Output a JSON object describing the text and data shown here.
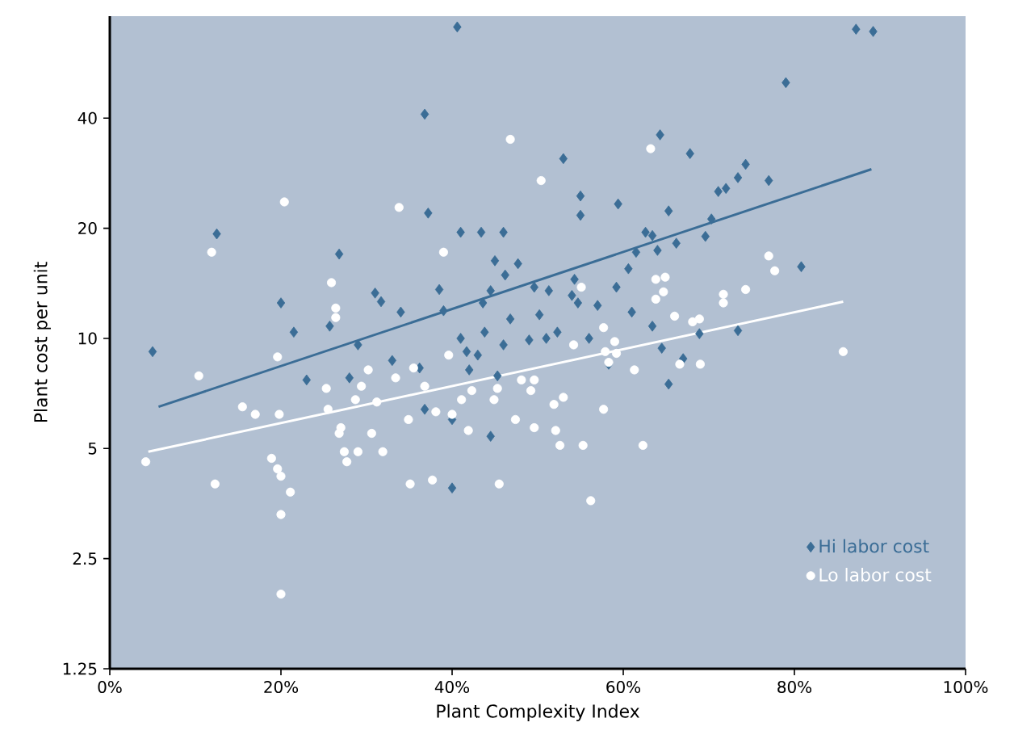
{
  "chart_data": {
    "type": "scatter",
    "xlabel": "Plant Complexity Index",
    "ylabel": "Plant cost per unit",
    "log": "y",
    "legend": "bottom right",
    "grid": false,
    "xlim": [
      0,
      100
    ],
    "ylim": [
      1.25,
      76
    ],
    "xticks": [
      {
        "value": 0,
        "label": "0%"
      },
      {
        "value": 20,
        "label": "20%"
      },
      {
        "value": 40,
        "label": "40%"
      },
      {
        "value": 60,
        "label": "60%"
      },
      {
        "value": 80,
        "label": "80%"
      },
      {
        "value": 100,
        "label": "100%"
      }
    ],
    "yticks": [
      1.25,
      2.5,
      5,
      10,
      20,
      40
    ],
    "series": [
      {
        "name": "Hi labor cost",
        "color": "#3b6d96",
        "marker": "diamond",
        "x": [
          5,
          12.5,
          20,
          21.5,
          23,
          25.7,
          26.8,
          28,
          29,
          31,
          31.7,
          33,
          34,
          36.8,
          36.2,
          36.8,
          37.2,
          38.5,
          39,
          40,
          40,
          40.6,
          41,
          41,
          41.7,
          42,
          43,
          43.4,
          43.8,
          43.6,
          44.5,
          45,
          44.5,
          45.3,
          46,
          46.8,
          46.2,
          47.7,
          46,
          49,
          49.6,
          50.2,
          51.3,
          51,
          52.3,
          53,
          54,
          54.3,
          54.7,
          55,
          55,
          56,
          57,
          58.3,
          59.2,
          59.4,
          60.6,
          61,
          61.5,
          62.6,
          63.4,
          63.4,
          64,
          64.3,
          64.5,
          65.3,
          65.3,
          66.2,
          67,
          67.8,
          68.9,
          69.6,
          70.3,
          71.1,
          72,
          73.4,
          73.4,
          74.3,
          77,
          79,
          80.8,
          87.2,
          89.2
        ],
        "values": [
          9.2,
          19.3,
          12.5,
          10.4,
          7.7,
          10.8,
          17,
          7.8,
          9.6,
          13.3,
          12.6,
          8.7,
          11.8,
          6.4,
          8.3,
          41,
          22,
          13.6,
          11.9,
          6.0,
          3.9,
          71,
          19.5,
          10,
          9.2,
          8.2,
          9,
          19.5,
          10.4,
          12.5,
          13.5,
          16.3,
          5.4,
          7.9,
          9.6,
          11.3,
          14.9,
          16,
          19.5,
          9.9,
          13.8,
          11.6,
          13.5,
          10,
          10.4,
          31,
          13.1,
          14.5,
          12.5,
          24.5,
          21.7,
          10,
          12.3,
          8.5,
          13.8,
          23.3,
          15.5,
          11.8,
          17.2,
          19.5,
          19.1,
          10.8,
          17.4,
          36,
          9.4,
          22.3,
          7.5,
          18.2,
          8.8,
          32,
          10.3,
          19,
          21.2,
          25.2,
          25.7,
          27.5,
          10.5,
          29.9,
          27,
          50,
          15.7,
          70,
          69
        ]
      },
      {
        "name": "Lo labor cost",
        "color": "#ffffff",
        "marker": "circle",
        "x": [
          4.2,
          10.4,
          11.9,
          12.3,
          15.5,
          17,
          19.6,
          18.9,
          19.8,
          20,
          20,
          20,
          20.4,
          21.1,
          19.6,
          25.3,
          25.9,
          25.5,
          26.4,
          26.4,
          26.8,
          27,
          27.4,
          27.7,
          28.7,
          29,
          29.4,
          30.2,
          30.6,
          31.2,
          31.9,
          33.4,
          33.8,
          34.9,
          35.5,
          35.1,
          36.8,
          38.1,
          37.7,
          39,
          39.6,
          40,
          41.1,
          42.3,
          41.9,
          44.9,
          45.3,
          45.5,
          46.8,
          48.1,
          47.4,
          49.6,
          49.2,
          49.6,
          50.4,
          51.9,
          52.1,
          52.6,
          53,
          54.2,
          55.3,
          56.2,
          55.1,
          57.7,
          57.7,
          58.3,
          59.2,
          59,
          61.3,
          62.3,
          63.8,
          63.8,
          64.7,
          64.9,
          66.6,
          66,
          68.1,
          69,
          68.9,
          71.7,
          71.7,
          74.3,
          77,
          77.7,
          85.7,
          63.2,
          57.9
        ],
        "values": [
          4.6,
          7.9,
          17.2,
          4.0,
          6.5,
          6.2,
          8.9,
          4.7,
          6.2,
          4.2,
          3.3,
          2.0,
          23.6,
          3.8,
          4.4,
          7.3,
          14.2,
          6.4,
          12.1,
          11.4,
          5.5,
          5.7,
          4.9,
          4.6,
          6.8,
          4.9,
          7.4,
          8.2,
          5.5,
          6.7,
          4.9,
          7.8,
          22.8,
          6.0,
          8.3,
          4.0,
          7.4,
          6.3,
          4.1,
          17.2,
          9.0,
          6.2,
          6.8,
          7.2,
          5.6,
          6.8,
          7.3,
          4.0,
          35,
          7.7,
          6.0,
          7.7,
          7.2,
          5.7,
          27,
          6.6,
          5.6,
          5.1,
          6.9,
          9.6,
          5.1,
          3.6,
          13.8,
          6.4,
          10.7,
          8.6,
          9.1,
          9.8,
          8.2,
          5.1,
          14.5,
          12.8,
          13.4,
          14.7,
          8.5,
          11.5,
          11.1,
          8.5,
          11.3,
          12.5,
          13.2,
          13.6,
          16.8,
          15.3,
          9.2,
          33,
          9.2
        ]
      },
      {
        "type": "line",
        "color": "#3b6d96",
        "marker": "none",
        "line_style": "solid",
        "x": [
          5.7,
          89
        ],
        "values": [
          6.5,
          29
        ]
      },
      {
        "type": "line",
        "color": "#ffffff",
        "marker": "none",
        "line_style": "solid",
        "x": [
          4.5,
          85.7
        ],
        "values": [
          4.9,
          12.6
        ]
      }
    ]
  }
}
